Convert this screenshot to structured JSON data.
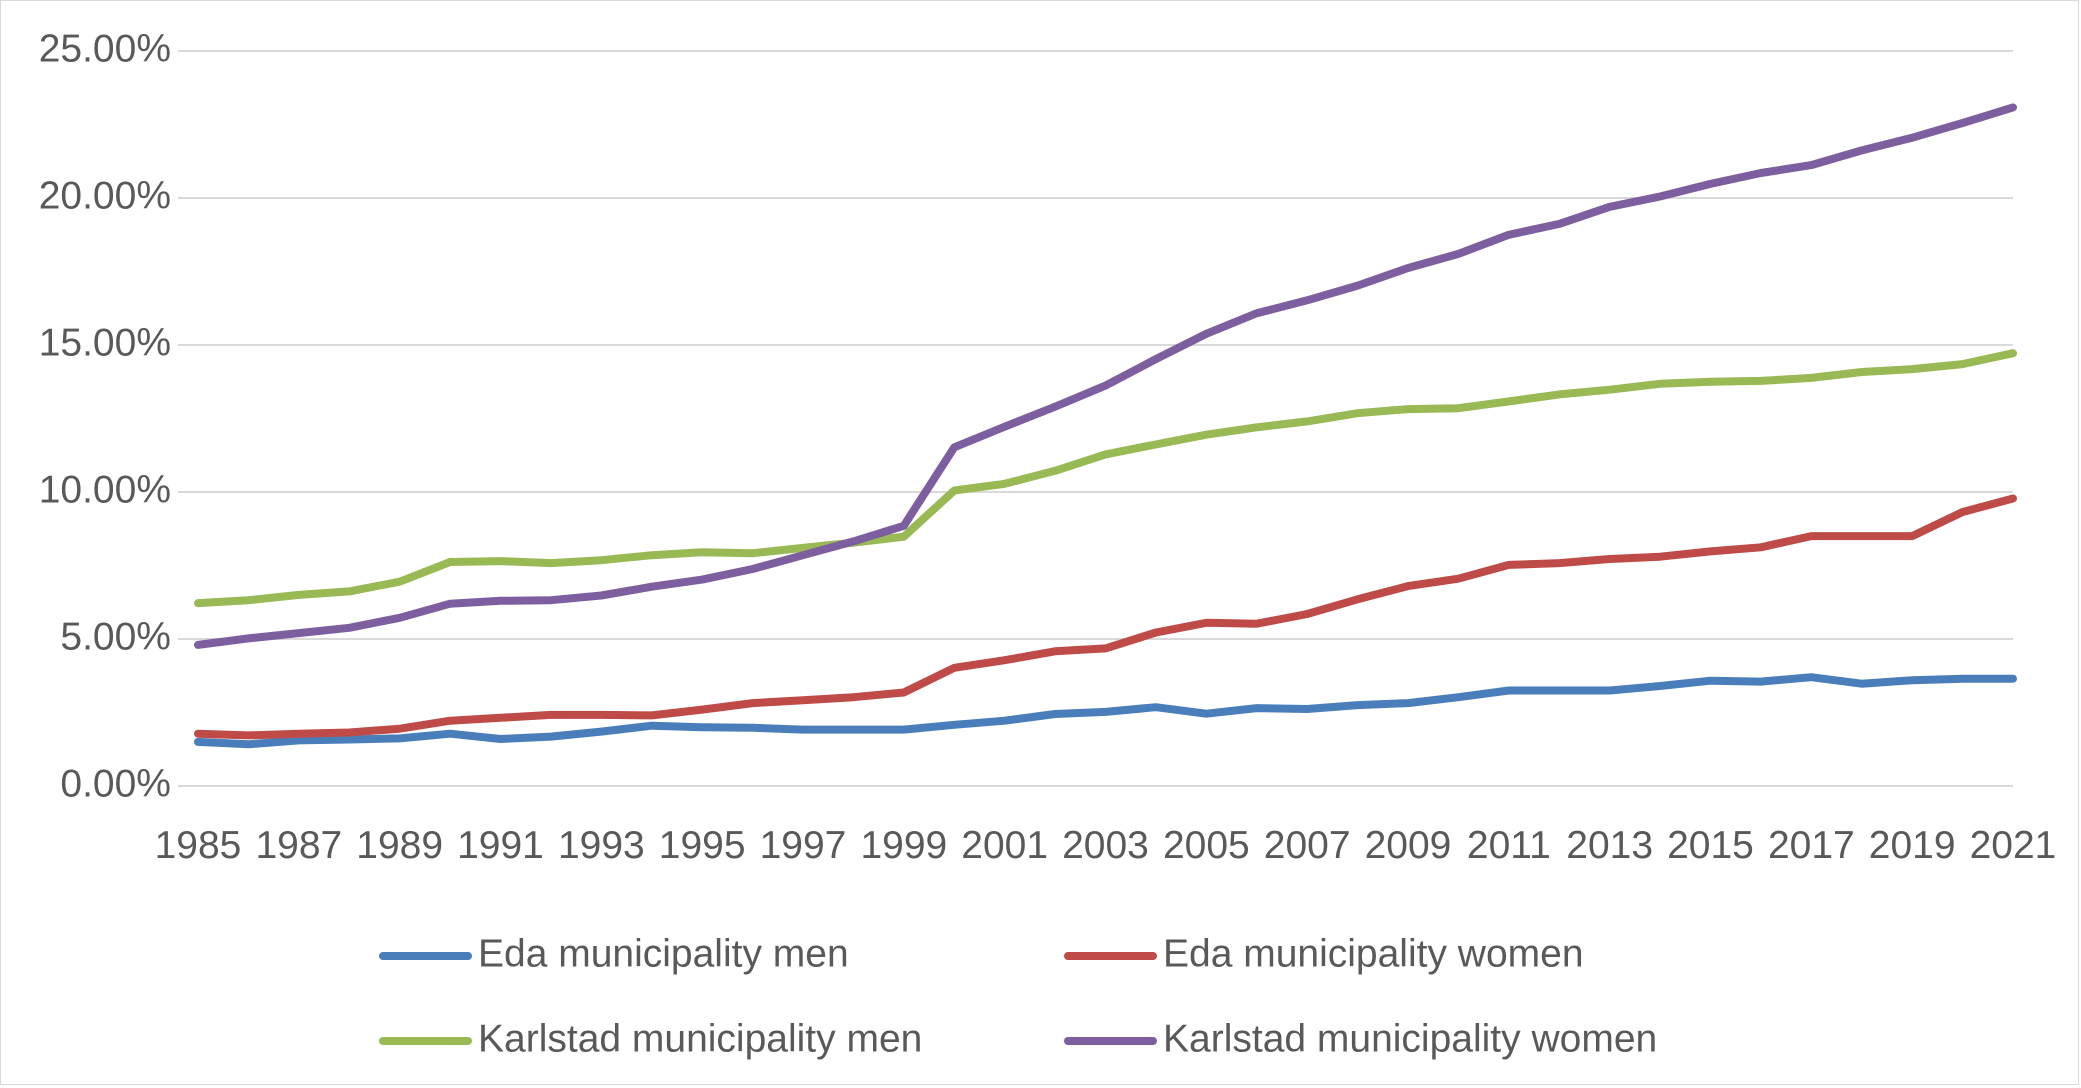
{
  "chart_data": {
    "type": "line",
    "title": "",
    "xlabel": "",
    "ylabel": "",
    "ylim": [
      0,
      25
    ],
    "y_ticks": [
      "0.00%",
      "5.00%",
      "10.00%",
      "15.00%",
      "20.00%",
      "25.00%"
    ],
    "x": [
      1985,
      1986,
      1987,
      1988,
      1989,
      1990,
      1991,
      1992,
      1993,
      1994,
      1995,
      1996,
      1997,
      1998,
      1999,
      2000,
      2001,
      2002,
      2003,
      2004,
      2005,
      2006,
      2007,
      2008,
      2009,
      2010,
      2011,
      2012,
      2013,
      2014,
      2015,
      2016,
      2017,
      2018,
      2019,
      2020,
      2021
    ],
    "x_tick_labels": [
      "1985",
      "1987",
      "1989",
      "1991",
      "1993",
      "1995",
      "1997",
      "1999",
      "2001",
      "2003",
      "2005",
      "2007",
      "2009",
      "2011",
      "2013",
      "2015",
      "2017",
      "2019",
      "2021"
    ],
    "grid": true,
    "legend_position": "bottom",
    "series": [
      {
        "name": "Eda municipality men",
        "color": "#4a7ebb",
        "values": [
          1.5,
          1.42,
          1.55,
          1.58,
          1.62,
          1.78,
          1.6,
          1.68,
          1.85,
          2.05,
          2.0,
          1.98,
          1.92,
          1.92,
          1.92,
          2.08,
          2.22,
          2.45,
          2.52,
          2.68,
          2.46,
          2.65,
          2.62,
          2.75,
          2.82,
          3.02,
          3.25,
          3.25,
          3.25,
          3.4,
          3.58,
          3.55,
          3.7,
          3.48,
          3.6,
          3.65,
          3.65
        ]
      },
      {
        "name": "Eda municipality women",
        "color": "#be4b48",
        "values": [
          1.78,
          1.72,
          1.78,
          1.82,
          1.95,
          2.22,
          2.32,
          2.42,
          2.42,
          2.4,
          2.6,
          2.82,
          2.92,
          3.02,
          3.18,
          4.02,
          4.28,
          4.58,
          4.68,
          5.22,
          5.55,
          5.52,
          5.85,
          6.35,
          6.8,
          7.05,
          7.52,
          7.58,
          7.72,
          7.8,
          7.98,
          8.12,
          8.5,
          8.5,
          8.5,
          9.32,
          9.78
        ]
      },
      {
        "name": "Karlstad municipality men",
        "color": "#98b954",
        "values": [
          6.22,
          6.32,
          6.5,
          6.62,
          6.95,
          7.62,
          7.65,
          7.58,
          7.68,
          7.85,
          7.95,
          7.92,
          8.1,
          8.28,
          8.48,
          10.05,
          10.28,
          10.72,
          11.28,
          11.62,
          11.95,
          12.2,
          12.4,
          12.68,
          12.82,
          12.85,
          13.08,
          13.32,
          13.48,
          13.68,
          13.75,
          13.78,
          13.88,
          14.08,
          14.18,
          14.35,
          14.72
        ]
      },
      {
        "name": "Karlstad municipality women",
        "color": "#7d5fa0",
        "values": [
          4.8,
          5.02,
          5.2,
          5.38,
          5.72,
          6.2,
          6.3,
          6.32,
          6.48,
          6.78,
          7.02,
          7.38,
          7.85,
          8.32,
          8.85,
          11.52,
          12.22,
          12.9,
          13.62,
          14.52,
          15.38,
          16.08,
          16.52,
          17.02,
          17.62,
          18.1,
          18.75,
          19.12,
          19.7,
          20.05,
          20.48,
          20.85,
          21.12,
          21.62,
          22.05,
          22.55,
          23.08
        ]
      }
    ]
  }
}
